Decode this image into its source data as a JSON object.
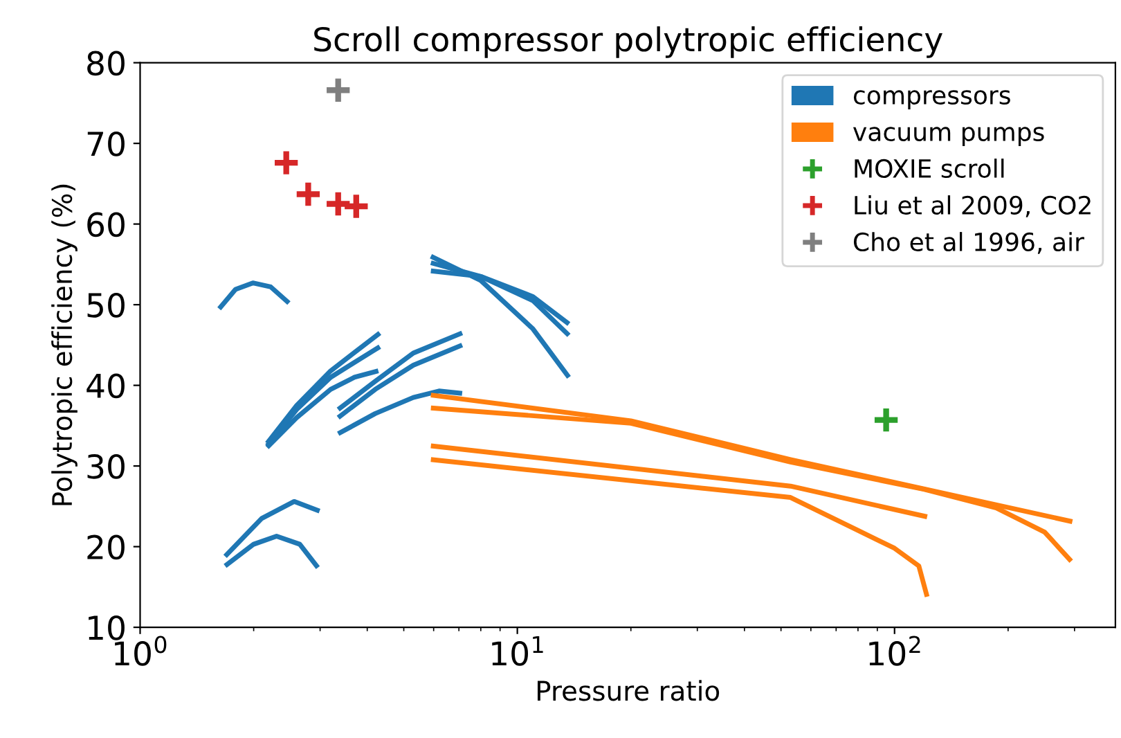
{
  "chart_data": {
    "type": "line",
    "title": "Scroll compressor polytropic efficiency",
    "xlabel": "Pressure ratio",
    "ylabel": "Polytropic efficiency (%)",
    "log": "x",
    "xlim": [
      1,
      385
    ],
    "xticks": [
      {
        "value": 1,
        "label": "10$^{0}$"
      },
      {
        "value": 10,
        "label": "10$^{1}$"
      },
      {
        "value": 100,
        "label": "10$^{2}$"
      }
    ],
    "ylim": [
      10,
      80
    ],
    "yticks": [
      10,
      20,
      30,
      40,
      50,
      60,
      70,
      80
    ],
    "grid": false,
    "legend": "top right",
    "line_style": "solid",
    "series": [
      {
        "name": "compressors",
        "color": "#1f77b4",
        "x": [
          1.62,
          1.79,
          1.99,
          2.22,
          2.48
        ],
        "values": [
          49.5,
          51.9,
          52.7,
          52.2,
          50.2
        ]
      },
      {
        "color": "#1f77b4",
        "x": [
          1.68,
          2.0,
          2.3,
          2.65,
          2.96
        ],
        "values": [
          17.6,
          20.3,
          21.3,
          20.3,
          17.4
        ]
      },
      {
        "color": "#1f77b4",
        "x": [
          1.68,
          2.1,
          2.56,
          2.99
        ],
        "values": [
          18.8,
          23.5,
          25.6,
          24.4
        ]
      },
      {
        "color": "#1f77b4",
        "x": [
          2.17,
          2.6,
          3.2,
          4.32
        ],
        "values": [
          32.8,
          37.5,
          41.8,
          46.5
        ]
      },
      {
        "color": "#1f77b4",
        "x": [
          2.17,
          2.6,
          3.2,
          4.32
        ],
        "values": [
          32.5,
          37,
          41,
          44.8
        ]
      },
      {
        "color": "#1f77b4",
        "x": [
          2.17,
          2.6,
          3.2,
          3.7,
          4.28
        ],
        "values": [
          32.3,
          36,
          39.5,
          41,
          41.8
        ]
      },
      {
        "color": "#1f77b4",
        "x": [
          3.35,
          4.2,
          5.3,
          7.14
        ],
        "values": [
          37,
          40.5,
          44,
          46.5
        ]
      },
      {
        "color": "#1f77b4",
        "x": [
          3.35,
          4.2,
          5.3,
          7.14
        ],
        "values": [
          36,
          39.5,
          42.5,
          45
        ]
      },
      {
        "color": "#1f77b4",
        "x": [
          3.35,
          4.2,
          5.3,
          6.2,
          7.14
        ],
        "values": [
          34,
          36.5,
          38.5,
          39.3,
          39
        ]
      },
      {
        "color": "#1f77b4",
        "x": [
          5.9,
          8,
          11,
          13.7
        ],
        "values": [
          56,
          53,
          47,
          41
        ]
      },
      {
        "color": "#1f77b4",
        "x": [
          5.9,
          8,
          11,
          13.7
        ],
        "values": [
          55.2,
          53.5,
          50.5,
          46.2
        ]
      },
      {
        "color": "#1f77b4",
        "x": [
          5.9,
          8,
          11,
          13.7
        ],
        "values": [
          54.2,
          53.5,
          51,
          47.6
        ]
      },
      {
        "name": "vacuum pumps",
        "color": "#ff7f0e",
        "x": [
          5.9,
          20,
          53,
          296
        ],
        "values": [
          38.8,
          35.6,
          30.8,
          23.1
        ]
      },
      {
        "color": "#ff7f0e",
        "x": [
          5.9,
          20,
          53,
          120,
          186,
          250,
          294
        ],
        "values": [
          37.2,
          35.3,
          30.5,
          27.1,
          24.8,
          21.8,
          18.2
        ]
      },
      {
        "color": "#ff7f0e",
        "x": [
          5.9,
          53,
          122
        ],
        "values": [
          32.5,
          27.5,
          23.7
        ]
      },
      {
        "color": "#ff7f0e",
        "x": [
          5.9,
          53,
          100,
          116,
          122
        ],
        "values": [
          30.8,
          26.1,
          19.8,
          17.6,
          13.8
        ]
      },
      {
        "name": "MOXIE scroll",
        "type": "scatter",
        "marker": "cross",
        "color": "#2ca02c",
        "x": [
          95
        ],
        "values": [
          35.7
        ]
      },
      {
        "name": "Liu et al 2009, CO2",
        "type": "scatter",
        "marker": "cross",
        "color": "#d62728",
        "x": [
          2.44,
          2.79,
          3.35,
          3.74
        ],
        "values": [
          67.6,
          63.7,
          62.5,
          62.2
        ]
      },
      {
        "name": "Cho et al 1996, air",
        "type": "scatter",
        "marker": "cross",
        "color": "#7f7f7f",
        "x": [
          3.35
        ],
        "values": [
          76.6
        ]
      }
    ]
  }
}
